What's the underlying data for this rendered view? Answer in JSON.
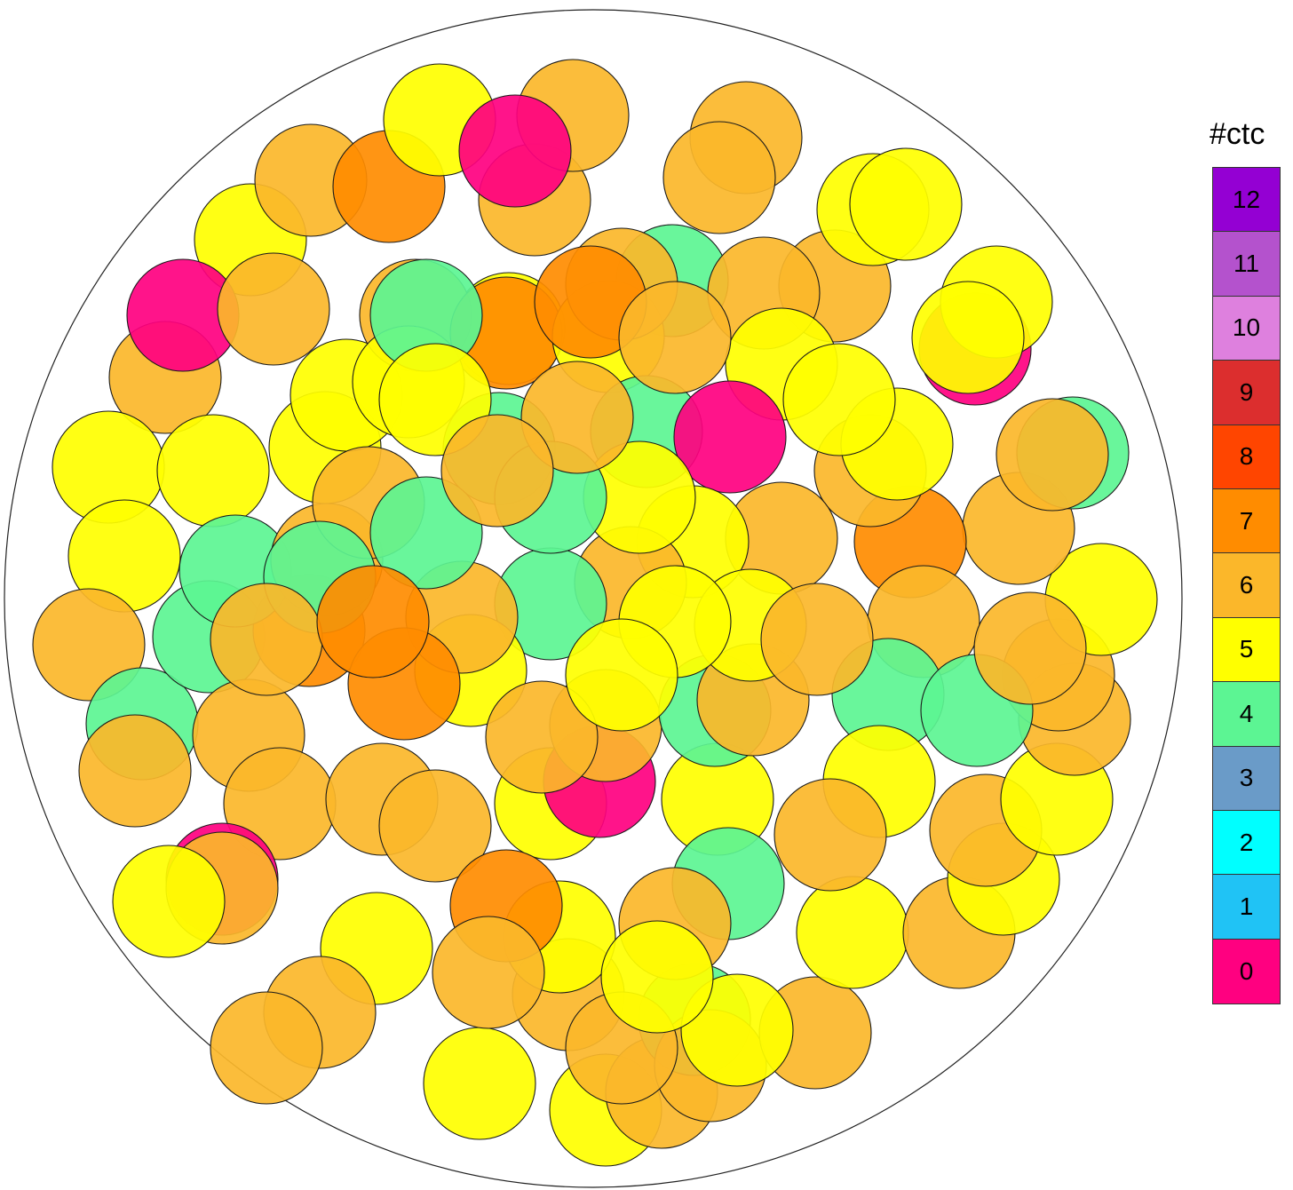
{
  "legend": {
    "title": "#ctc",
    "entries": [
      {
        "label": "12",
        "color": "#9400d3"
      },
      {
        "label": "11",
        "color": "#b452cd"
      },
      {
        "label": "10",
        "color": "#de80de"
      },
      {
        "label": "9",
        "color": "#dc2e2e"
      },
      {
        "label": "8",
        "color": "#ff4500"
      },
      {
        "label": "7",
        "color": "#ff8c00"
      },
      {
        "label": "6",
        "color": "#fbb72a"
      },
      {
        "label": "5",
        "color": "#ffff00"
      },
      {
        "label": "4",
        "color": "#5cf593"
      },
      {
        "label": "3",
        "color": "#6a9bc8"
      },
      {
        "label": "2",
        "color": "#00ffff"
      },
      {
        "label": "1",
        "color": "#20c3f5"
      },
      {
        "label": "0",
        "color": "#ff0080"
      }
    ]
  },
  "sphere_contacts": [
    6,
    5,
    5,
    6,
    4,
    6,
    4,
    7,
    5,
    6,
    0,
    6,
    5,
    5,
    4,
    6,
    5,
    6,
    6,
    0,
    6,
    6,
    5,
    6,
    7,
    5,
    6,
    6,
    4,
    5,
    6,
    7,
    6,
    5,
    5,
    6,
    4,
    6,
    6,
    5,
    6,
    5,
    6,
    5,
    6,
    6,
    5,
    6,
    7,
    6,
    5,
    4,
    6,
    0,
    5,
    6,
    5,
    6,
    6,
    4,
    5,
    6,
    6,
    5,
    4,
    0,
    5,
    6,
    5,
    6,
    4,
    5,
    6,
    7,
    6,
    4,
    6,
    5,
    0,
    6,
    5,
    4,
    6,
    5,
    6,
    4,
    5,
    6,
    4,
    6,
    5,
    7,
    6,
    5,
    4,
    6,
    0,
    5,
    4,
    6,
    5,
    6,
    5,
    7,
    6,
    5,
    6,
    4,
    6,
    5,
    5,
    6,
    4,
    6,
    7,
    5,
    6,
    5,
    5,
    6
  ]
}
